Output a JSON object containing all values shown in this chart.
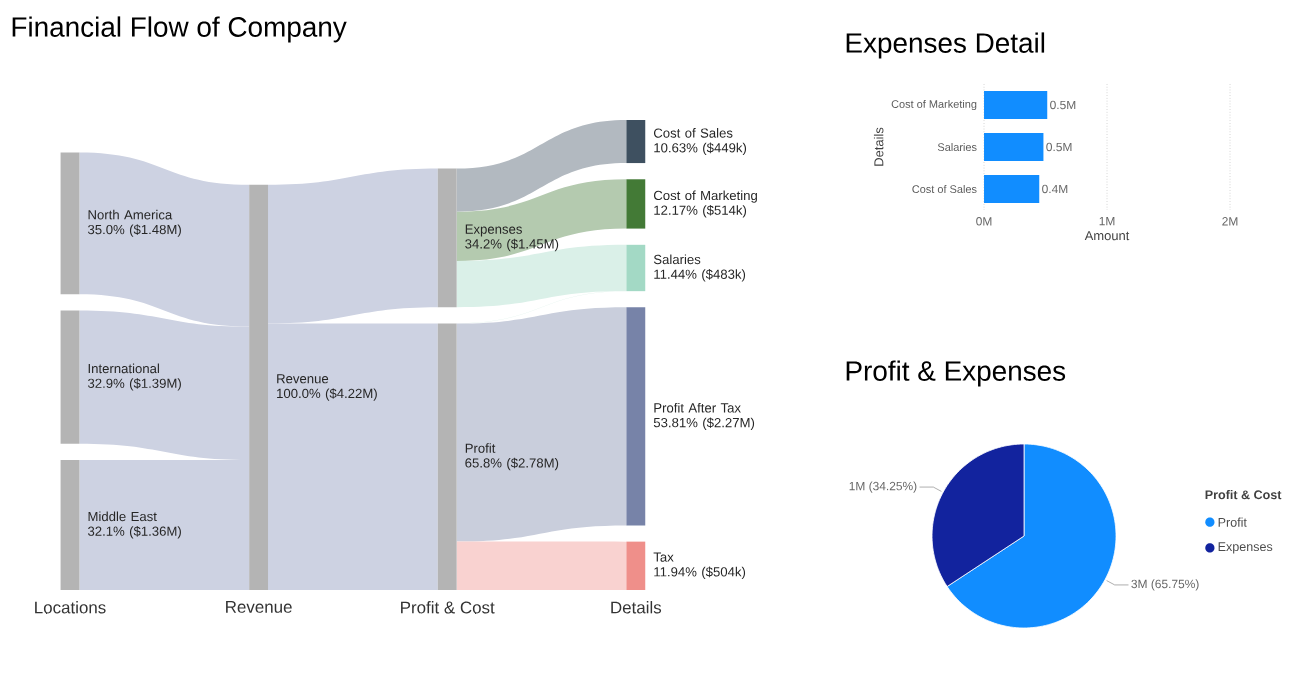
{
  "chart_data": [
    {
      "type": "other",
      "title": "Financial Flow of Company",
      "categories": [
        "Locations",
        "Revenue",
        "Profit & Cost",
        "Details"
      ],
      "series": [
        {
          "name": "North America",
          "values": [
            35.0,
            null,
            null,
            null
          ],
          "value_labels": [
            "35.0% ($1.48M)",
            null,
            null,
            null
          ]
        },
        {
          "name": "International",
          "values": [
            32.9,
            null,
            null,
            null
          ],
          "value_labels": [
            "32.9% ($1.39M)",
            null,
            null,
            null
          ]
        },
        {
          "name": "Middle East",
          "values": [
            32.1,
            null,
            null,
            null
          ],
          "value_labels": [
            "32.1% ($1.36M)",
            null,
            null,
            null
          ]
        },
        {
          "name": "Revenue",
          "values": [
            null,
            100.0,
            null,
            null
          ],
          "value_labels": [
            null,
            "100.0% ($4.22M)",
            null,
            null
          ]
        },
        {
          "name": "Expenses",
          "values": [
            null,
            null,
            34.2,
            null
          ],
          "value_labels": [
            null,
            null,
            "34.2% ($1.45M)",
            null
          ]
        },
        {
          "name": "Profit",
          "values": [
            null,
            null,
            65.8,
            null
          ],
          "value_labels": [
            null,
            null,
            "65.8% ($2.78M)",
            null
          ]
        },
        {
          "name": "Cost of Sales",
          "values": [
            null,
            null,
            null,
            10.63
          ],
          "value_labels": [
            null,
            null,
            null,
            "10.63% ($449k)"
          ]
        },
        {
          "name": "Cost of Marketing",
          "values": [
            null,
            null,
            null,
            12.17
          ],
          "value_labels": [
            null,
            null,
            null,
            "12.17% ($514k)"
          ]
        },
        {
          "name": "Salaries",
          "values": [
            null,
            null,
            null,
            11.44
          ],
          "value_labels": [
            null,
            null,
            null,
            "11.44% ($483k)"
          ]
        },
        {
          "name": "Profit After Tax",
          "values": [
            null,
            null,
            null,
            53.81
          ],
          "value_labels": [
            null,
            null,
            null,
            "53.81% ($2.27M)"
          ]
        },
        {
          "name": "Tax",
          "values": [
            null,
            null,
            null,
            11.94
          ],
          "value_labels": [
            null,
            null,
            null,
            "11.94% ($504k)"
          ]
        }
      ]
    },
    {
      "type": "bar",
      "orientation": "horizontal",
      "title": "Expenses Detail",
      "categories": [
        "Cost of Marketing",
        "Salaries",
        "Cost of Sales"
      ],
      "values": [
        0.514,
        0.483,
        0.449
      ],
      "value_labels": [
        "0.5M",
        "0.5M",
        "0.4M"
      ],
      "color": "#118dff",
      "xlim": [
        0,
        2
      ],
      "xticks": [
        {
          "value": 0,
          "label": "0M"
        },
        {
          "value": 1,
          "label": "1M"
        },
        {
          "value": 2,
          "label": "2M"
        }
      ],
      "xlabel": "Amount",
      "ylabel": "Details",
      "grid": "x"
    },
    {
      "type": "pie",
      "title": "Profit & Expenses",
      "categories": [
        "Profit",
        "Expenses"
      ],
      "values": [
        65.75,
        34.25
      ],
      "value_labels": [
        "3M (65.75%)",
        "1M (34.25%)"
      ],
      "colors": [
        "#118dff",
        "#12239e"
      ],
      "legend": "right",
      "legend_title": "Profit & Cost"
    }
  ]
}
